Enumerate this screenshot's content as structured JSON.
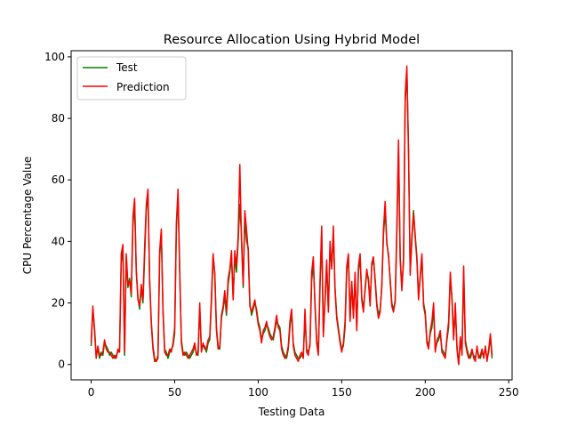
{
  "chart_data": {
    "type": "line",
    "title": "Resource Allocation Using Hybrid Model",
    "xlabel": "Testing Data",
    "ylabel": "CPU Percentage Value",
    "xlim": [
      -12,
      252
    ],
    "ylim": [
      -5,
      102
    ],
    "xticks": [
      0,
      50,
      100,
      150,
      200,
      250
    ],
    "yticks": [
      0,
      20,
      40,
      60,
      80,
      100
    ],
    "xtick_labels": [
      "0",
      "50",
      "100",
      "150",
      "200",
      "250"
    ],
    "ytick_labels": [
      "0",
      "20",
      "40",
      "60",
      "80",
      "100"
    ],
    "grid": false,
    "legend": {
      "placement": "top-left"
    },
    "series": [
      {
        "name": "Test",
        "color": "#008000",
        "values": [
          6,
          18,
          12,
          3,
          5,
          2,
          4,
          3,
          7,
          6,
          5,
          3,
          4,
          3,
          2,
          3,
          4,
          5,
          33,
          38,
          3,
          35,
          25,
          28,
          22,
          45,
          53,
          30,
          22,
          18,
          25,
          20,
          35,
          50,
          55,
          28,
          14,
          6,
          2,
          1,
          2,
          35,
          43,
          18,
          5,
          4,
          2,
          4,
          5,
          6,
          10,
          44,
          55,
          30,
          8,
          4,
          3,
          4,
          3,
          2,
          3,
          4,
          6,
          4,
          3,
          18,
          5,
          6,
          6,
          4,
          7,
          8,
          20,
          35,
          30,
          12,
          6,
          5,
          15,
          18,
          22,
          16,
          26,
          30,
          35,
          22,
          35,
          30,
          40,
          52,
          42,
          25,
          48,
          40,
          38,
          20,
          16,
          18,
          20,
          18,
          14,
          12,
          8,
          10,
          11,
          13,
          12,
          10,
          9,
          8,
          11,
          14,
          13,
          12,
          6,
          4,
          3,
          2,
          5,
          12,
          17,
          7,
          4,
          3,
          2,
          2,
          3,
          3,
          15,
          5,
          4,
          6,
          27,
          33,
          20,
          8,
          4,
          25,
          43,
          10,
          20,
          32,
          18,
          38,
          32,
          42,
          25,
          16,
          12,
          8,
          5,
          6,
          12,
          30,
          35,
          15,
          26,
          16,
          28,
          12,
          30,
          35,
          22,
          18,
          24,
          30,
          28,
          20,
          32,
          34,
          28,
          20,
          16,
          18,
          25,
          42,
          50,
          40,
          35,
          28,
          20,
          18,
          20,
          42,
          70,
          35,
          25,
          33,
          85,
          95,
          70,
          30,
          40,
          50,
          42,
          35,
          22,
          28,
          35,
          20,
          17,
          8,
          6,
          10,
          12,
          18,
          5,
          7,
          8,
          10,
          5,
          4,
          3,
          8,
          12,
          28,
          22,
          9,
          18,
          6,
          0,
          8,
          4,
          30,
          8,
          5,
          3,
          2,
          4,
          3,
          2,
          5,
          3,
          2,
          4,
          3,
          5,
          2,
          4,
          9,
          2
        ]
      },
      {
        "name": "Prediction",
        "color": "#ff0000",
        "values": [
          7,
          19,
          11,
          2,
          6,
          3,
          3,
          4,
          8,
          5,
          4,
          4,
          3,
          2,
          3,
          2,
          5,
          4,
          36,
          39,
          4,
          36,
          26,
          27,
          23,
          48,
          54,
          31,
          21,
          19,
          26,
          21,
          38,
          52,
          57,
          27,
          13,
          5,
          1,
          1,
          3,
          37,
          44,
          17,
          4,
          3,
          3,
          5,
          4,
          7,
          12,
          46,
          57,
          31,
          7,
          3,
          4,
          3,
          2,
          3,
          4,
          5,
          7,
          3,
          4,
          20,
          4,
          7,
          5,
          5,
          8,
          9,
          22,
          36,
          29,
          11,
          5,
          6,
          16,
          19,
          24,
          17,
          28,
          31,
          37,
          21,
          37,
          32,
          42,
          65,
          40,
          26,
          50,
          44,
          37,
          19,
          17,
          19,
          21,
          17,
          13,
          11,
          7,
          11,
          12,
          14,
          11,
          9,
          8,
          9,
          12,
          16,
          12,
          11,
          5,
          3,
          2,
          3,
          6,
          14,
          18,
          6,
          3,
          2,
          1,
          3,
          4,
          2,
          18,
          4,
          3,
          7,
          30,
          35,
          19,
          7,
          3,
          27,
          45,
          9,
          22,
          34,
          17,
          40,
          31,
          45,
          24,
          15,
          11,
          7,
          4,
          7,
          14,
          32,
          36,
          14,
          27,
          15,
          30,
          11,
          32,
          36,
          21,
          17,
          25,
          31,
          27,
          19,
          33,
          35,
          27,
          19,
          15,
          17,
          26,
          44,
          53,
          39,
          36,
          27,
          19,
          17,
          21,
          45,
          73,
          34,
          24,
          35,
          88,
          97,
          68,
          29,
          42,
          49,
          41,
          34,
          21,
          29,
          36,
          19,
          16,
          7,
          5,
          11,
          14,
          20,
          4,
          8,
          9,
          11,
          4,
          3,
          2,
          9,
          14,
          30,
          21,
          8,
          20,
          5,
          0,
          9,
          3,
          32,
          7,
          4,
          2,
          3,
          5,
          2,
          1,
          6,
          2,
          3,
          5,
          2,
          6,
          1,
          5,
          10,
          3
        ]
      }
    ]
  }
}
